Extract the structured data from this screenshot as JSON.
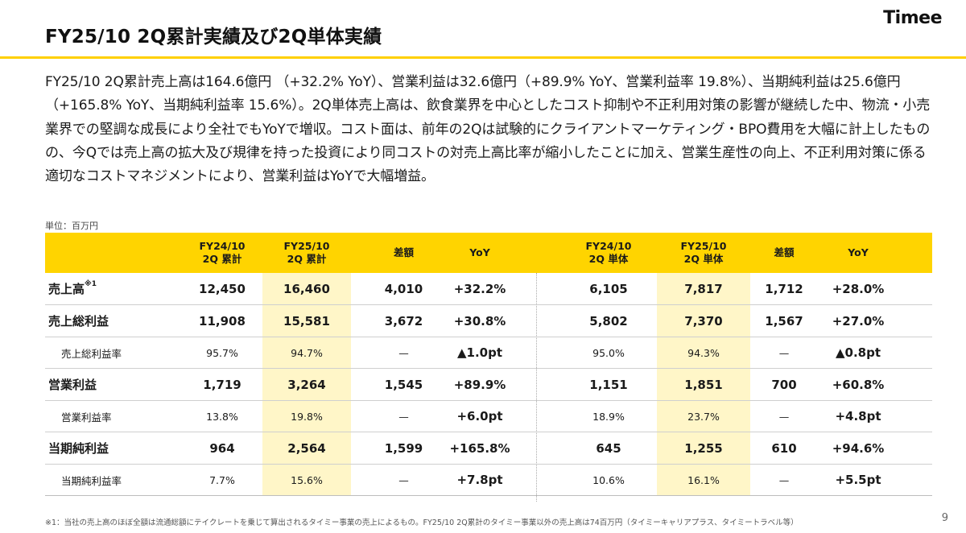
{
  "header": {
    "title": "FY25/10 2Q累計実績及び2Q単体実績",
    "logo": "Timee"
  },
  "summary": "FY25/10 2Q累計売上高は164.6億円 （+32.2% YoY）、営業利益は32.6億円（+89.9% YoY、営業利益率 19.8%）、当期純利益は25.6億円（+165.8% YoY、当期純利益率 15.6%）。2Q単体売上高は、飲食業界を中心としたコスト抑制や不正利用対策の影響が継続した中、物流・小売業界での堅調な成長により全社でもYoYで増収。コスト面は、前年の2Qは試験的にクライアントマーケティング・BPO費用を大幅に計上したものの、今Qでは売上高の拡大及び規律を持った投資により同コストの対売上高比率が縮小したことに加え、営業生産性の向上、不正利用対策に係る適切なコストマネジメントにより、営業利益はYoYで大幅増益。",
  "unit_label": "単位：百万円",
  "table": {
    "columns": [
      "FY24/10\n2Q 累計",
      "FY25/10\n2Q 累計",
      "差額",
      "YoY",
      "FY24/10\n2Q 単体",
      "FY25/10\n2Q 単体",
      "差額",
      "YoY"
    ],
    "rows": [
      {
        "label": "売上高",
        "sup": "※1",
        "type": "major",
        "cells": [
          "12,450",
          "16,460",
          "4,010",
          "+32.2%",
          "6,105",
          "7,817",
          "1,712",
          "+28.0%"
        ]
      },
      {
        "label": "売上総利益",
        "sup": "",
        "type": "major",
        "cells": [
          "11,908",
          "15,581",
          "3,672",
          "+30.8%",
          "5,802",
          "7,370",
          "1,567",
          "+27.0%"
        ]
      },
      {
        "label": "売上総利益率",
        "sup": "",
        "type": "sub",
        "cells": [
          "95.7%",
          "94.7%",
          "—",
          "▲1.0pt",
          "95.0%",
          "94.3%",
          "—",
          "▲0.8pt"
        ]
      },
      {
        "label": "営業利益",
        "sup": "",
        "type": "major",
        "cells": [
          "1,719",
          "3,264",
          "1,545",
          "+89.9%",
          "1,151",
          "1,851",
          "700",
          "+60.8%"
        ]
      },
      {
        "label": "営業利益率",
        "sup": "",
        "type": "sub",
        "cells": [
          "13.8%",
          "19.8%",
          "—",
          "+6.0pt",
          "18.9%",
          "23.7%",
          "—",
          "+4.8pt"
        ]
      },
      {
        "label": "当期純利益",
        "sup": "",
        "type": "major",
        "cells": [
          "964",
          "2,564",
          "1,599",
          "+165.8%",
          "645",
          "1,255",
          "610",
          "+94.6%"
        ]
      },
      {
        "label": "当期純利益率",
        "sup": "",
        "type": "sub",
        "cells": [
          "7.7%",
          "15.6%",
          "—",
          "+7.8pt",
          "10.6%",
          "16.1%",
          "—",
          "+5.5pt"
        ]
      }
    ]
  },
  "footnote": "※1：当社の売上高のほぼ全額は流通総額にテイクレートを乗じて算出されるタイミー事業の売上によるもの。FY25/10 2Q累計のタイミー事業以外の売上高は74百万円（タイミーキャリアプラス、タイミートラベル等）",
  "page_number": "9"
}
